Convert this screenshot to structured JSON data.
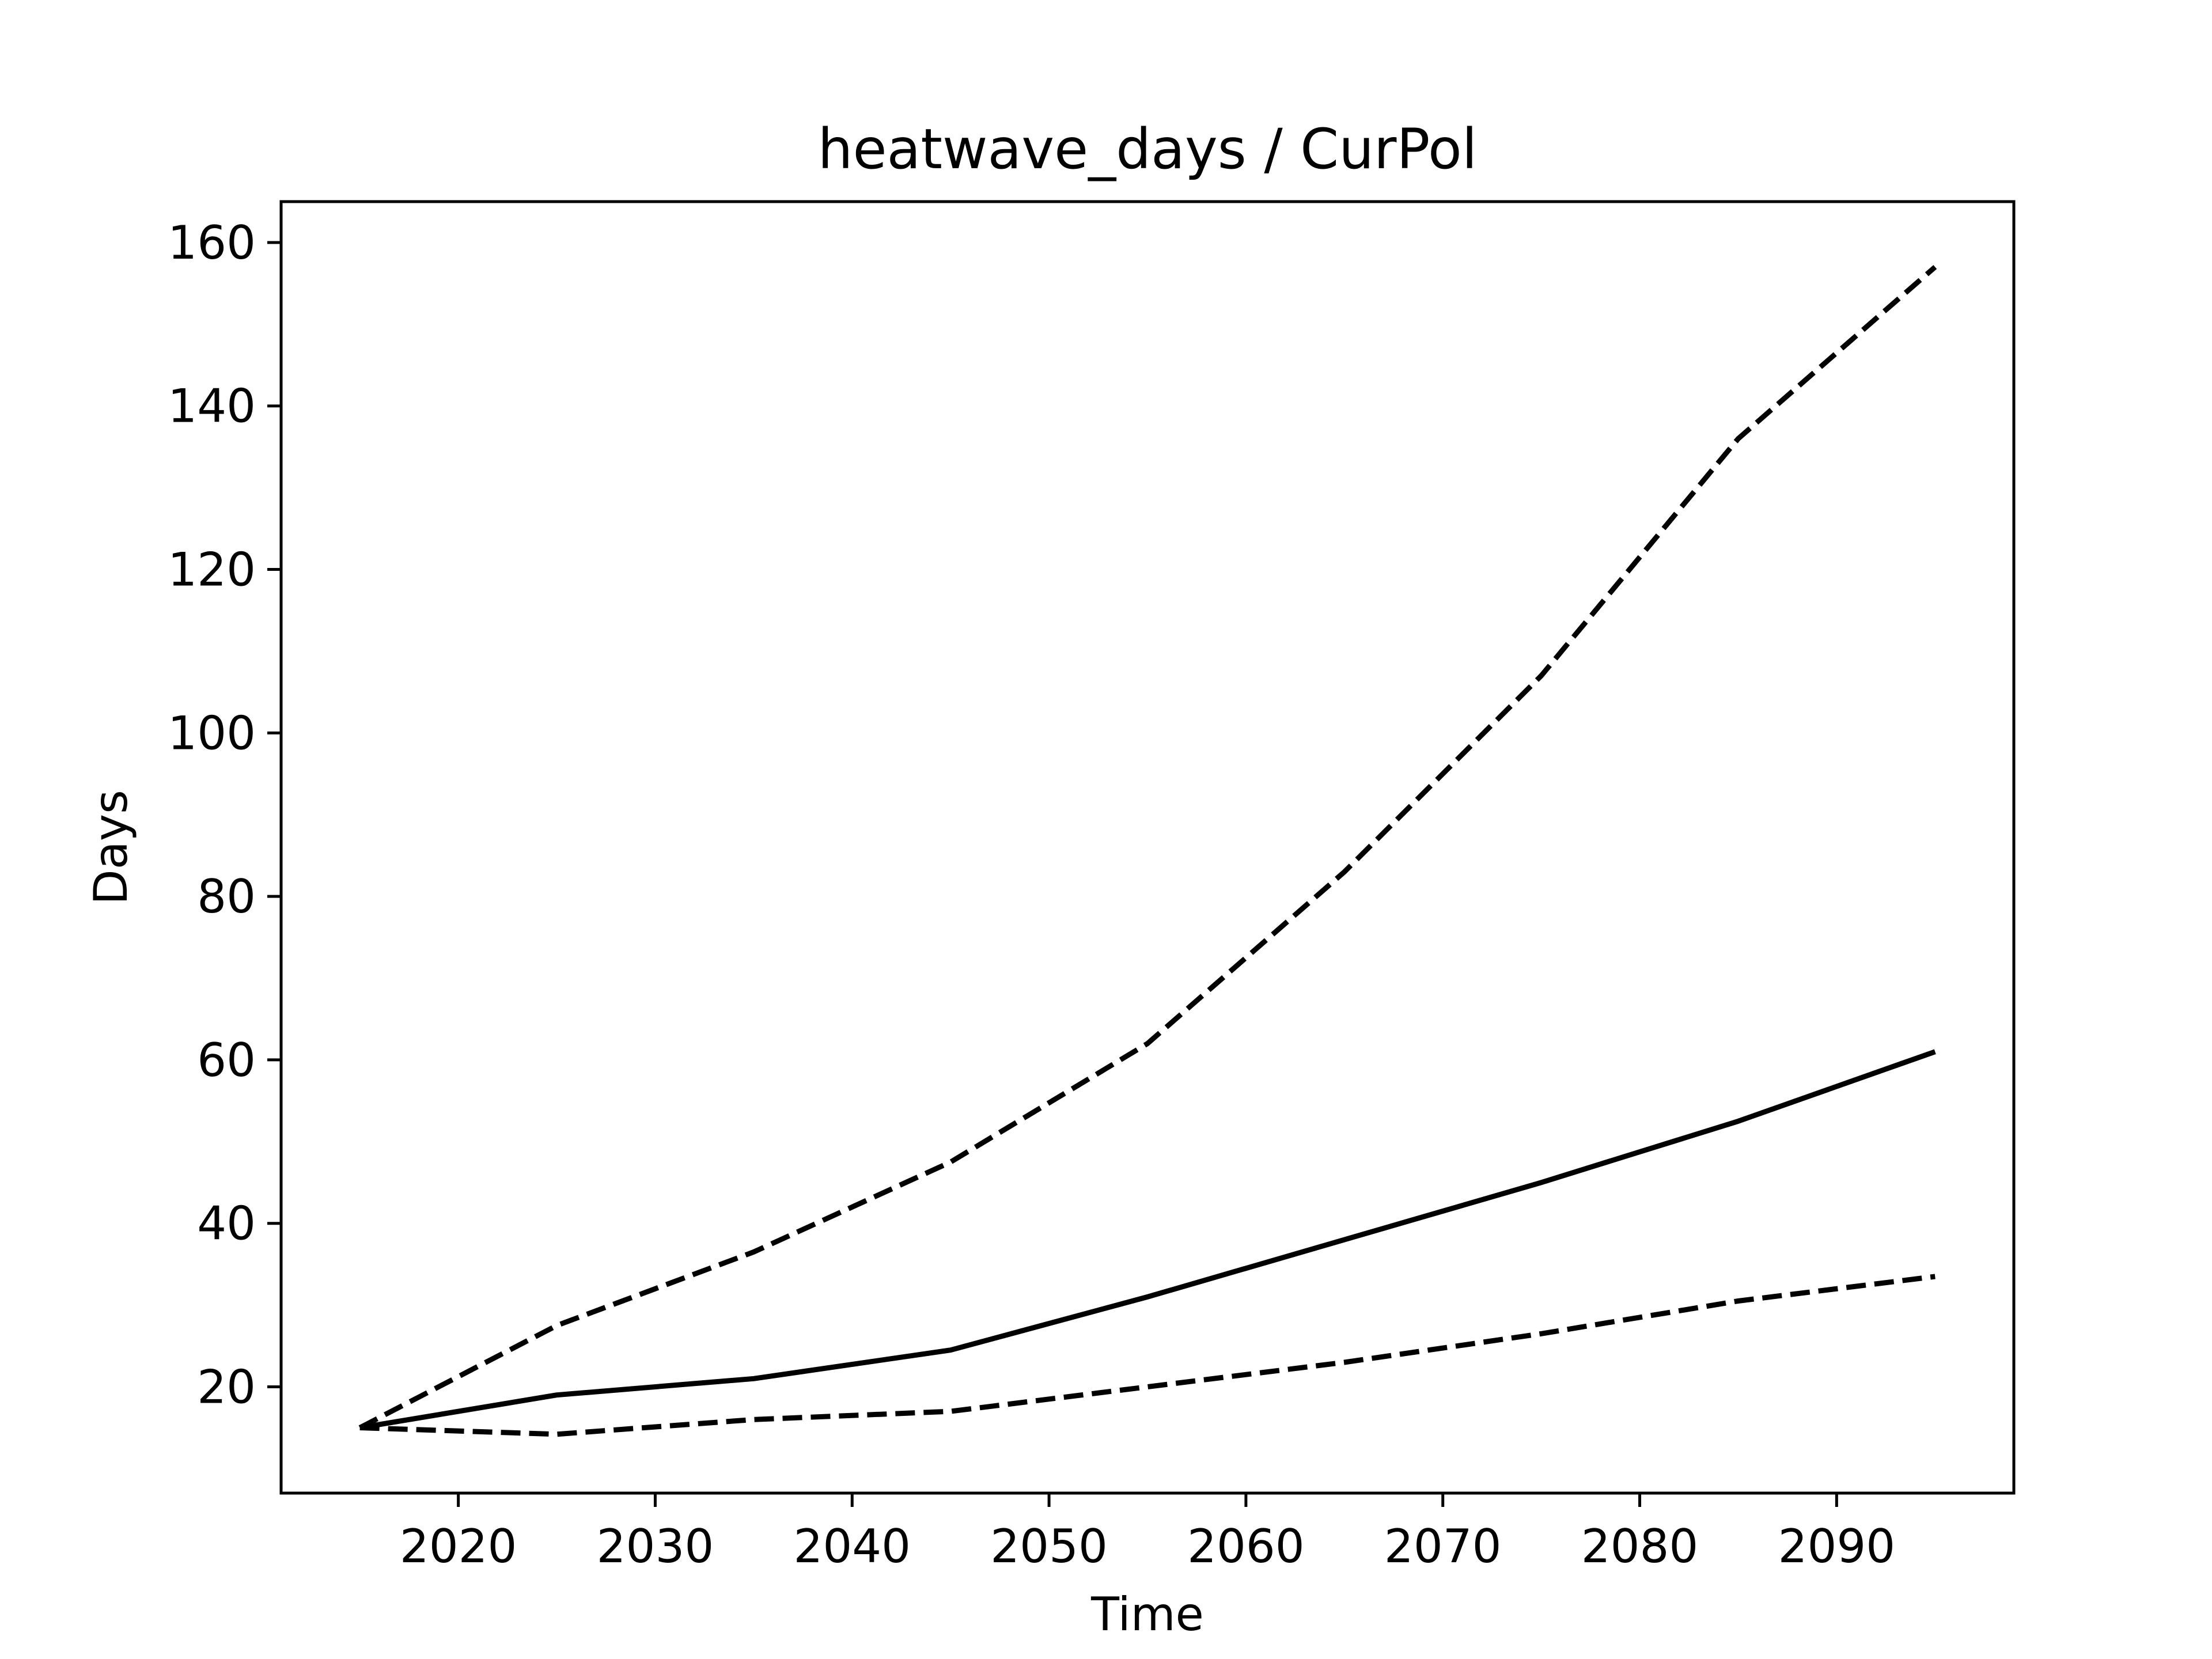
{
  "chart_data": {
    "type": "line",
    "title": "heatwave_days / CurPol",
    "xlabel": "Time",
    "ylabel": "Days",
    "xlim": [
      2011,
      2099
    ],
    "ylim": [
      7,
      165
    ],
    "xticks": [
      2020,
      2030,
      2040,
      2050,
      2060,
      2070,
      2080,
      2090
    ],
    "yticks": [
      20,
      40,
      60,
      80,
      100,
      120,
      140,
      160
    ],
    "grid": false,
    "legend": "none",
    "line_color": "#000000",
    "series": [
      {
        "style": "dashed",
        "x": [
          2015,
          2025,
          2035,
          2045,
          2055,
          2065,
          2075,
          2085,
          2095
        ],
        "y": [
          15,
          27.5,
          36.5,
          47.5,
          62,
          83,
          107,
          136,
          157
        ]
      },
      {
        "style": "solid",
        "x": [
          2015,
          2025,
          2035,
          2045,
          2055,
          2065,
          2075,
          2085,
          2095
        ],
        "y": [
          15,
          19,
          21,
          24.5,
          31,
          38,
          45,
          52.5,
          61
        ]
      },
      {
        "style": "dashed",
        "x": [
          2015,
          2025,
          2035,
          2045,
          2055,
          2065,
          2075,
          2085,
          2095
        ],
        "y": [
          15,
          14.2,
          16,
          17,
          20,
          23,
          26.5,
          30.5,
          33.5
        ]
      }
    ]
  }
}
